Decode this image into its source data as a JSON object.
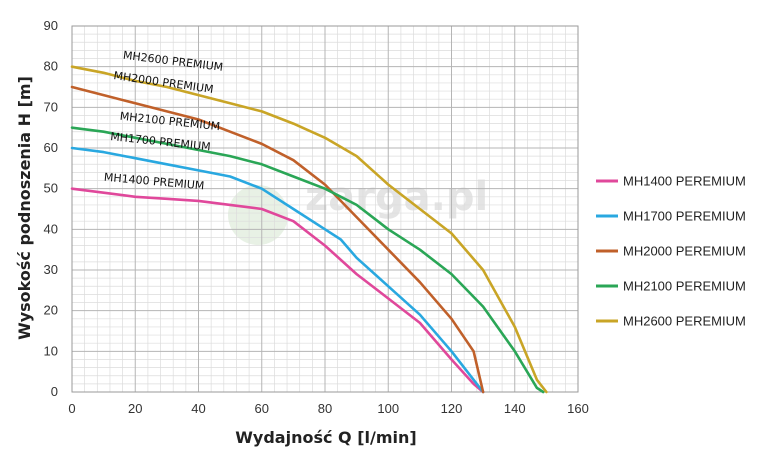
{
  "chart_data": {
    "type": "line",
    "title": "",
    "xlabel": "Wydajność Q [l/min]",
    "ylabel": "Wysokość podnoszenia H [m]",
    "xlim": [
      0,
      160
    ],
    "ylim": [
      0,
      90
    ],
    "xticks": [
      "0",
      "20",
      "40",
      "60",
      "80",
      "100",
      "120",
      "140",
      "160"
    ],
    "yticks": [
      "0",
      "10",
      "20",
      "30",
      "40",
      "50",
      "60",
      "70",
      "80",
      "90"
    ],
    "grid": true,
    "legend": "right",
    "watermark": "zarga.pl",
    "series": [
      {
        "name": "MH1400 PEREMIUM",
        "curve_label": "MH1400 PREMIUM",
        "color": "#e0489b",
        "points": [
          [
            0,
            50
          ],
          [
            10,
            49
          ],
          [
            20,
            48
          ],
          [
            30,
            47.5
          ],
          [
            40,
            47
          ],
          [
            50,
            46
          ],
          [
            60,
            45
          ],
          [
            70,
            42
          ],
          [
            80,
            36
          ],
          [
            90,
            29
          ],
          [
            100,
            23
          ],
          [
            110,
            17
          ],
          [
            120,
            8
          ],
          [
            127,
            2
          ],
          [
            130,
            0
          ]
        ]
      },
      {
        "name": "MH1700 PEREMIUM",
        "curve_label": "MH1700 PREMIUM",
        "color": "#29a8e0",
        "points": [
          [
            0,
            60
          ],
          [
            10,
            59
          ],
          [
            20,
            57.5
          ],
          [
            30,
            56
          ],
          [
            40,
            54.5
          ],
          [
            50,
            53
          ],
          [
            60,
            50
          ],
          [
            70,
            45
          ],
          [
            80,
            40
          ],
          [
            85,
            37.5
          ],
          [
            90,
            33
          ],
          [
            100,
            26
          ],
          [
            110,
            19
          ],
          [
            120,
            10
          ],
          [
            125,
            5
          ],
          [
            130,
            0
          ]
        ]
      },
      {
        "name": "MH2000 PEREMIUM",
        "curve_label": "MH2000 PREMIUM",
        "color": "#c0602a",
        "points": [
          [
            0,
            75
          ],
          [
            10,
            73
          ],
          [
            20,
            71
          ],
          [
            30,
            69
          ],
          [
            40,
            67
          ],
          [
            50,
            64
          ],
          [
            60,
            61
          ],
          [
            70,
            57
          ],
          [
            80,
            51
          ],
          [
            90,
            43
          ],
          [
            100,
            35
          ],
          [
            110,
            27
          ],
          [
            120,
            18
          ],
          [
            127,
            10
          ],
          [
            130,
            0
          ]
        ]
      },
      {
        "name": "MH2100 PEREMIUM",
        "curve_label": "MH2100 PREMIUM",
        "color": "#2aa656",
        "points": [
          [
            0,
            65
          ],
          [
            10,
            64
          ],
          [
            20,
            62.5
          ],
          [
            30,
            61
          ],
          [
            40,
            59.5
          ],
          [
            50,
            58
          ],
          [
            60,
            56
          ],
          [
            70,
            53
          ],
          [
            80,
            50
          ],
          [
            90,
            46
          ],
          [
            100,
            40
          ],
          [
            110,
            35
          ],
          [
            120,
            29
          ],
          [
            130,
            21
          ],
          [
            140,
            10
          ],
          [
            147,
            1
          ],
          [
            149,
            0
          ]
        ]
      },
      {
        "name": "MH2600 PEREMIUM",
        "curve_label": "MH2600 PREMIUM",
        "color": "#c9a526",
        "points": [
          [
            0,
            80
          ],
          [
            10,
            78.5
          ],
          [
            20,
            76.5
          ],
          [
            30,
            75
          ],
          [
            40,
            73
          ],
          [
            50,
            71
          ],
          [
            60,
            69
          ],
          [
            70,
            66
          ],
          [
            80,
            62.5
          ],
          [
            90,
            58
          ],
          [
            100,
            51
          ],
          [
            110,
            45
          ],
          [
            120,
            39
          ],
          [
            130,
            30
          ],
          [
            140,
            16
          ],
          [
            147,
            3
          ],
          [
            150,
            0
          ]
        ]
      }
    ]
  }
}
